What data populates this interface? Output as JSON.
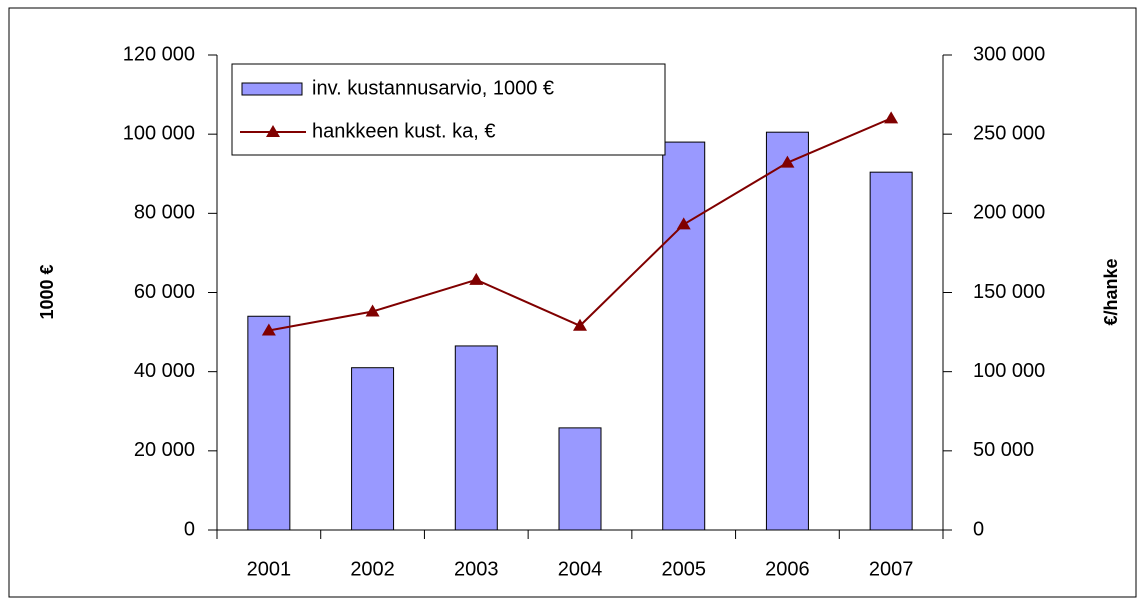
{
  "chart_data": {
    "type": "bar",
    "categories": [
      "2001",
      "2002",
      "2003",
      "2004",
      "2005",
      "2006",
      "2007"
    ],
    "series": [
      {
        "name": "inv. kustannusarvio, 1000 €",
        "type": "bar",
        "color": "#9999ff",
        "values": [
          54000,
          41000,
          46500,
          25800,
          98000,
          100500,
          90400
        ]
      },
      {
        "name": "hankkeen kust. ka, €",
        "type": "line",
        "axis": "y2",
        "color": "#800000",
        "values": [
          126000,
          138000,
          158000,
          129000,
          193000,
          232000,
          260000
        ]
      }
    ],
    "ylabel": "1000 €",
    "y2label": "€/hanke",
    "ylim": [
      0,
      120000
    ],
    "yticks": [
      0,
      {
        "value": 20000,
        "label": "20 000"
      },
      {
        "value": 40000,
        "label": "40 000"
      },
      {
        "value": 60000,
        "label": "60 000"
      },
      {
        "value": 80000,
        "label": "80 000"
      },
      {
        "value": 100000,
        "label": "100 000"
      },
      {
        "value": 120000,
        "label": "120 000"
      }
    ],
    "y2lim": [
      0,
      300000
    ],
    "y2ticks": [
      0,
      {
        "value": 50000,
        "label": "50 000"
      },
      {
        "value": 100000,
        "label": "100 000"
      },
      {
        "value": 150000,
        "label": "150 000"
      },
      {
        "value": 200000,
        "label": "200 000"
      },
      {
        "value": 250000,
        "label": "250 000"
      },
      {
        "value": 300000,
        "label": "300 000"
      }
    ]
  }
}
